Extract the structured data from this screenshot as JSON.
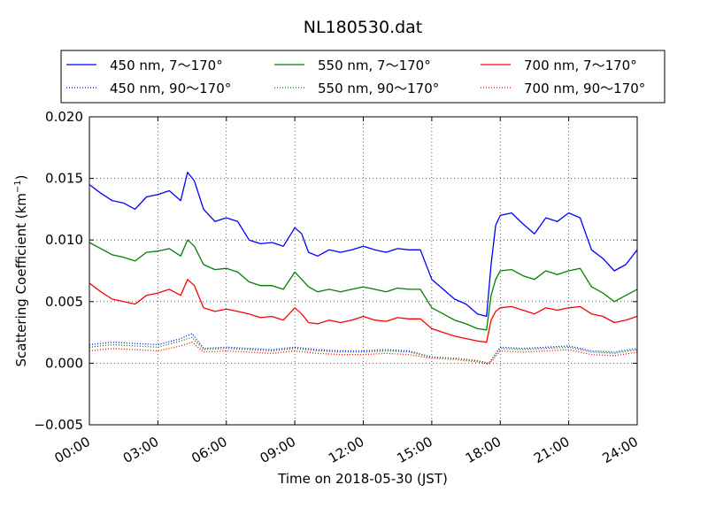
{
  "chart_data": {
    "type": "line",
    "title": "NL180530.dat",
    "xlabel": "Time on 2018-05-30 (JST)",
    "ylabel": "Scattering Coefficient (km",
    "ylabel_sup": "−1",
    "ylabel_close": ")",
    "xlim": [
      0,
      24
    ],
    "ylim": [
      -0.005,
      0.02
    ],
    "grid": true,
    "legend_placement": "top (above plot)",
    "x_ticks": [
      {
        "value": 0,
        "label": "00:00"
      },
      {
        "value": 3,
        "label": "03:00"
      },
      {
        "value": 6,
        "label": "06:00"
      },
      {
        "value": 9,
        "label": "09:00"
      },
      {
        "value": 12,
        "label": "12:00"
      },
      {
        "value": 15,
        "label": "15:00"
      },
      {
        "value": 18,
        "label": "18:00"
      },
      {
        "value": 21,
        "label": "21:00"
      },
      {
        "value": 24,
        "label": "24:00"
      }
    ],
    "y_ticks": [
      {
        "value": -0.005,
        "label": "−0.005"
      },
      {
        "value": 0.0,
        "label": "0.000"
      },
      {
        "value": 0.005,
        "label": "0.005"
      },
      {
        "value": 0.01,
        "label": "0.010"
      },
      {
        "value": 0.015,
        "label": "0.015"
      },
      {
        "value": 0.02,
        "label": "0.020"
      }
    ],
    "series": [
      {
        "name": "450 nm, 7～170°",
        "color": "#0000ff",
        "style": "solid",
        "x": [
          0,
          0.5,
          1,
          1.5,
          2,
          2.5,
          3,
          3.5,
          4,
          4.3,
          4.6,
          5,
          5.5,
          6,
          6.5,
          7,
          7.5,
          8,
          8.5,
          9,
          9.3,
          9.6,
          10,
          10.5,
          11,
          11.5,
          12,
          12.5,
          13,
          13.5,
          14,
          14.5,
          15,
          15.5,
          16,
          16.5,
          17,
          17.4,
          17.6,
          17.8,
          18,
          18.5,
          19,
          19.5,
          20,
          20.5,
          21,
          21.5,
          22,
          22.5,
          23,
          23.5,
          24
        ],
        "y": [
          0.0145,
          0.0138,
          0.0132,
          0.013,
          0.0125,
          0.0135,
          0.0137,
          0.014,
          0.0132,
          0.0155,
          0.0148,
          0.0125,
          0.0115,
          0.0118,
          0.0115,
          0.01,
          0.0097,
          0.0098,
          0.0095,
          0.011,
          0.0105,
          0.009,
          0.0087,
          0.0092,
          0.009,
          0.0092,
          0.0095,
          0.0092,
          0.009,
          0.0093,
          0.0092,
          0.0092,
          0.0068,
          0.006,
          0.0052,
          0.0048,
          0.004,
          0.0038,
          0.008,
          0.0112,
          0.012,
          0.0122,
          0.0113,
          0.0105,
          0.0118,
          0.0115,
          0.0122,
          0.0118,
          0.0092,
          0.0085,
          0.0075,
          0.008,
          0.0092
        ]
      },
      {
        "name": "450 nm, 90～170°",
        "color": "#0000ff",
        "style": "dotted",
        "x": [
          0,
          1,
          2,
          3,
          4,
          4.5,
          5,
          6,
          7,
          8,
          9,
          10,
          11,
          12,
          13,
          14,
          15,
          16,
          17,
          17.5,
          18,
          19,
          20,
          21,
          22,
          23,
          24
        ],
        "y": [
          0.0015,
          0.0017,
          0.0016,
          0.0015,
          0.002,
          0.0024,
          0.0012,
          0.0013,
          0.0012,
          0.0011,
          0.0013,
          0.0011,
          0.001,
          0.001,
          0.0011,
          0.001,
          0.0005,
          0.0004,
          0.0002,
          0.0,
          0.0013,
          0.0012,
          0.0013,
          0.0014,
          0.001,
          0.0009,
          0.0012
        ]
      },
      {
        "name": "550 nm, 7～170°",
        "color": "#008000",
        "style": "solid",
        "x": [
          0,
          0.5,
          1,
          1.5,
          2,
          2.5,
          3,
          3.5,
          4,
          4.3,
          4.6,
          5,
          5.5,
          6,
          6.5,
          7,
          7.5,
          8,
          8.5,
          9,
          9.3,
          9.6,
          10,
          10.5,
          11,
          11.5,
          12,
          12.5,
          13,
          13.5,
          14,
          14.5,
          15,
          15.5,
          16,
          16.5,
          17,
          17.4,
          17.6,
          17.8,
          18,
          18.5,
          19,
          19.5,
          20,
          20.5,
          21,
          21.5,
          22,
          22.5,
          23,
          23.5,
          24
        ],
        "y": [
          0.0098,
          0.0093,
          0.0088,
          0.0086,
          0.0083,
          0.009,
          0.0091,
          0.0093,
          0.0087,
          0.01,
          0.0095,
          0.008,
          0.0076,
          0.0077,
          0.0074,
          0.0066,
          0.0063,
          0.0063,
          0.006,
          0.0074,
          0.0068,
          0.0062,
          0.0058,
          0.006,
          0.0058,
          0.006,
          0.0062,
          0.006,
          0.0058,
          0.0061,
          0.006,
          0.006,
          0.0045,
          0.004,
          0.0035,
          0.0032,
          0.0028,
          0.0027,
          0.0055,
          0.0068,
          0.0075,
          0.0076,
          0.0071,
          0.0068,
          0.0075,
          0.0072,
          0.0075,
          0.0077,
          0.0062,
          0.0057,
          0.005,
          0.0055,
          0.006
        ]
      },
      {
        "name": "550 nm, 90～170°",
        "color": "#008000",
        "style": "dotted",
        "x": [
          0,
          1,
          2,
          3,
          4,
          4.5,
          5,
          6,
          7,
          8,
          9,
          10,
          11,
          12,
          13,
          14,
          15,
          16,
          17,
          17.5,
          18,
          19,
          20,
          21,
          22,
          23,
          24
        ],
        "y": [
          0.0013,
          0.0015,
          0.0014,
          0.0013,
          0.0018,
          0.0021,
          0.0011,
          0.0012,
          0.0011,
          0.001,
          0.0012,
          0.001,
          0.0009,
          0.0009,
          0.001,
          0.0009,
          0.0005,
          0.0004,
          0.0002,
          0.0,
          0.0012,
          0.0011,
          0.0012,
          0.0013,
          0.0009,
          0.0008,
          0.0011
        ]
      },
      {
        "name": "700 nm, 7～170°",
        "color": "#ff0000",
        "style": "solid",
        "x": [
          0,
          0.5,
          1,
          1.5,
          2,
          2.5,
          3,
          3.5,
          4,
          4.3,
          4.6,
          5,
          5.5,
          6,
          6.5,
          7,
          7.5,
          8,
          8.5,
          9,
          9.3,
          9.6,
          10,
          10.5,
          11,
          11.5,
          12,
          12.5,
          13,
          13.5,
          14,
          14.5,
          15,
          15.5,
          16,
          16.5,
          17,
          17.4,
          17.6,
          17.8,
          18,
          18.5,
          19,
          19.5,
          20,
          20.5,
          21,
          21.5,
          22,
          22.5,
          23,
          23.5,
          24
        ],
        "y": [
          0.0065,
          0.0058,
          0.0052,
          0.005,
          0.0048,
          0.0055,
          0.0057,
          0.006,
          0.0055,
          0.0068,
          0.0063,
          0.0045,
          0.0042,
          0.0044,
          0.0042,
          0.004,
          0.0037,
          0.0038,
          0.0035,
          0.0045,
          0.004,
          0.0033,
          0.0032,
          0.0035,
          0.0033,
          0.0035,
          0.0038,
          0.0035,
          0.0034,
          0.0037,
          0.0036,
          0.0036,
          0.0028,
          0.0025,
          0.0022,
          0.002,
          0.0018,
          0.0017,
          0.0035,
          0.0042,
          0.0045,
          0.0046,
          0.0043,
          0.004,
          0.0045,
          0.0043,
          0.0045,
          0.0046,
          0.004,
          0.0038,
          0.0033,
          0.0035,
          0.0038
        ]
      },
      {
        "name": "700 nm, 90～170°",
        "color": "#ff0000",
        "style": "dotted",
        "x": [
          0,
          1,
          2,
          3,
          4,
          4.5,
          5,
          6,
          7,
          8,
          9,
          10,
          11,
          12,
          13,
          14,
          15,
          16,
          17,
          17.5,
          18,
          19,
          20,
          21,
          22,
          23,
          24
        ],
        "y": [
          0.001,
          0.0012,
          0.0011,
          0.001,
          0.0014,
          0.0017,
          0.0009,
          0.001,
          0.0009,
          0.0008,
          0.001,
          0.0008,
          0.0007,
          0.0007,
          0.0008,
          0.0007,
          0.0004,
          0.0003,
          0.0001,
          -0.0001,
          0.001,
          0.0009,
          0.001,
          0.0011,
          0.0007,
          0.0006,
          0.0009
        ]
      }
    ]
  }
}
